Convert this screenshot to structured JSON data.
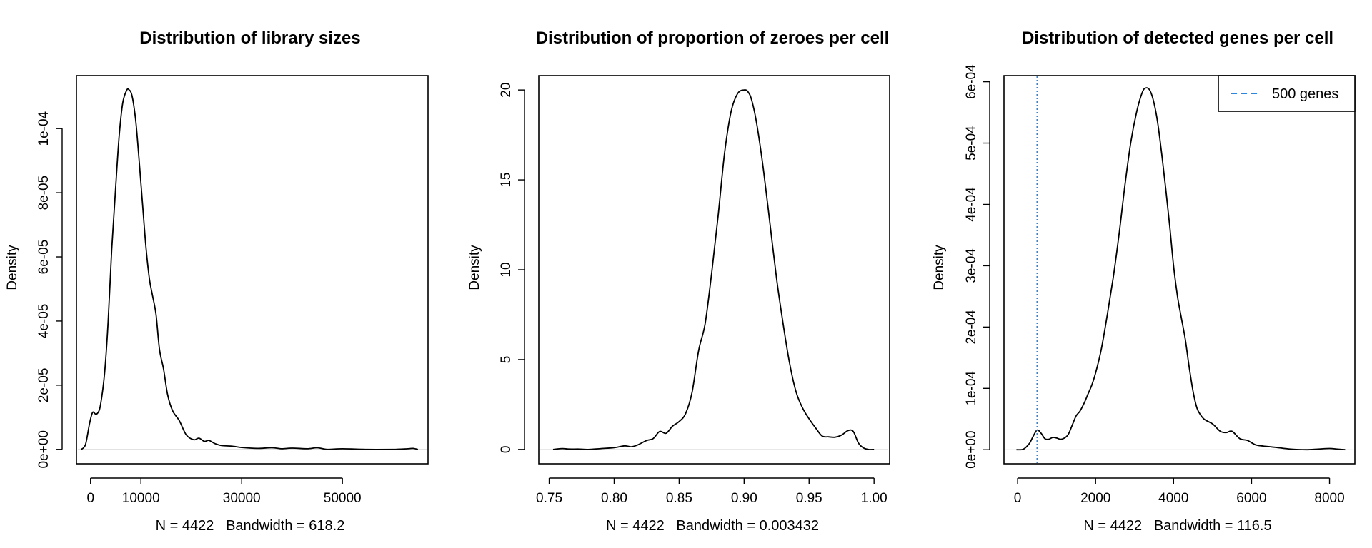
{
  "figure": {
    "background": "#ffffff",
    "curve_color": "#000000",
    "zero_line_color": "#d9d9d9"
  },
  "chart_data": [
    {
      "type": "line",
      "title": "Distribution of library sizes",
      "xlabel": "N = 4422   Bandwidth = 618.2",
      "ylabel": "Density",
      "xlim": [
        -2800,
        67000
      ],
      "ylim": [
        -4.5e-06,
        0.0001165
      ],
      "xticks": [
        0,
        10000,
        30000,
        50000
      ],
      "xtick_labels": [
        "0",
        "10000",
        "30000",
        "50000"
      ],
      "yticks": [
        0,
        2e-05,
        4e-05,
        6e-05,
        8e-05,
        0.0001
      ],
      "ytick_labels": [
        "0e+00",
        "2e-05",
        "4e-05",
        "6e-05",
        "8e-05",
        "1e-04"
      ],
      "series": [
        {
          "name": "density",
          "x": [
            -1850,
            -1000,
            -200,
            400,
            1000,
            1500,
            2000,
            2800,
            3500,
            4200,
            5000,
            5700,
            6400,
            7200,
            7700,
            8100,
            8500,
            9000,
            9600,
            10300,
            11000,
            11700,
            12300,
            13000,
            13700,
            14500,
            15300,
            16300,
            17600,
            19000,
            20500,
            21500,
            22600,
            23500,
            24700,
            26000,
            28000,
            30000,
            33000,
            36000,
            38000,
            40000,
            43000,
            45000,
            47000,
            50000,
            55000,
            60000,
            63000,
            64000,
            65000
          ],
          "values": [
            0,
            1.5e-06,
            8e-06,
            1.15e-05,
            1.1e-05,
            1.15e-05,
            1.4e-05,
            2.4e-05,
            4e-05,
            6.2e-05,
            8.2e-05,
            9.8e-05,
            0.000108,
            0.000112,
            0.000112,
            0.000111,
            0.000108,
            0.000102,
            9.1e-05,
            7.7e-05,
            6.3e-05,
            5.3e-05,
            4.8e-05,
            4.2e-05,
            3.1e-05,
            2.5e-05,
            1.7e-05,
            1.2e-05,
            9e-06,
            4.5e-06,
            3e-06,
            3.5e-06,
            2.5e-06,
            2.8e-06,
            1.8e-06,
            1.2e-06,
            1e-06,
            6e-07,
            3e-07,
            5e-07,
            2e-07,
            4e-07,
            2e-07,
            5e-07,
            0,
            2e-07,
            0,
            0,
            2e-07,
            3e-07,
            0
          ]
        }
      ],
      "zero_line": true
    },
    {
      "type": "line",
      "title": "Distribution of proportion of zeroes per cell",
      "xlabel": "N = 4422   Bandwidth = 0.003432",
      "ylabel": "Density",
      "xlim": [
        0.742,
        1.012
      ],
      "ylim": [
        -0.8,
        20.8
      ],
      "xticks": [
        0.75,
        0.8,
        0.85,
        0.9,
        0.95,
        1.0
      ],
      "xtick_labels": [
        "0.75",
        "0.80",
        "0.85",
        "0.90",
        "0.95",
        "1.00"
      ],
      "yticks": [
        0,
        5,
        10,
        15,
        20
      ],
      "ytick_labels": [
        "0",
        "5",
        "10",
        "15",
        "20"
      ],
      "series": [
        {
          "name": "density",
          "x": [
            0.753,
            0.76,
            0.765,
            0.772,
            0.78,
            0.79,
            0.8,
            0.808,
            0.813,
            0.818,
            0.825,
            0.83,
            0.835,
            0.84,
            0.845,
            0.85,
            0.855,
            0.86,
            0.865,
            0.87,
            0.875,
            0.88,
            0.885,
            0.89,
            0.895,
            0.9,
            0.903,
            0.906,
            0.91,
            0.915,
            0.92,
            0.925,
            0.93,
            0.935,
            0.94,
            0.945,
            0.95,
            0.955,
            0.96,
            0.965,
            0.97,
            0.975,
            0.98,
            0.984,
            0.988,
            0.992,
            0.996,
            1.0
          ],
          "values": [
            0,
            0.05,
            0.02,
            0.02,
            0,
            0.05,
            0.1,
            0.2,
            0.15,
            0.25,
            0.5,
            0.6,
            1.0,
            0.9,
            1.3,
            1.55,
            2.0,
            3.2,
            5.5,
            7.0,
            9.8,
            13.0,
            16.5,
            18.8,
            19.8,
            20.0,
            19.9,
            19.4,
            18.0,
            15.5,
            12.5,
            9.5,
            7.0,
            4.8,
            3.2,
            2.3,
            1.7,
            1.2,
            0.75,
            0.7,
            0.68,
            0.8,
            1.05,
            1.0,
            0.35,
            0.08,
            0,
            0
          ]
        }
      ],
      "zero_line": true
    },
    {
      "type": "line",
      "title": "Distribution of detected genes per cell",
      "xlabel": "N = 4422   Bandwidth = 116.5",
      "ylabel": "Density",
      "xlim": [
        -350,
        8650
      ],
      "ylim": [
        -2.3e-05,
        0.00061
      ],
      "xticks": [
        0,
        2000,
        4000,
        6000,
        8000
      ],
      "xtick_labels": [
        "0",
        "2000",
        "4000",
        "6000",
        "8000"
      ],
      "yticks": [
        0,
        0.0001,
        0.0002,
        0.0003,
        0.0004,
        0.0005,
        0.0006
      ],
      "ytick_labels": [
        "0e+00",
        "1e-04",
        "2e-04",
        "3e-04",
        "4e-04",
        "5e-04",
        "6e-04"
      ],
      "series": [
        {
          "name": "density",
          "x": [
            -30,
            150,
            300,
            400,
            500,
            600,
            700,
            800,
            900,
            1000,
            1100,
            1200,
            1300,
            1400,
            1500,
            1600,
            1700,
            1800,
            1900,
            2000,
            2150,
            2300,
            2450,
            2600,
            2750,
            2900,
            3050,
            3200,
            3300,
            3400,
            3500,
            3600,
            3700,
            3800,
            3900,
            4000,
            4100,
            4200,
            4300,
            4400,
            4500,
            4600,
            4700,
            4800,
            5000,
            5200,
            5350,
            5500,
            5700,
            5900,
            6100,
            6300,
            6600,
            7000,
            7400,
            7700,
            8000,
            8200,
            8400
          ],
          "values": [
            0,
            1e-06,
            1e-05,
            2.2e-05,
            3.2e-05,
            2.7e-05,
            1.8e-05,
            1.7e-05,
            2e-05,
            1.9e-05,
            1.7e-05,
            1.9e-05,
            2.5e-05,
            4e-05,
            5.5e-05,
            6.3e-05,
            7.5e-05,
            9e-05,
            0.000105,
            0.000125,
            0.000165,
            0.00022,
            0.00028,
            0.00035,
            0.00043,
            0.0005,
            0.00055,
            0.000583,
            0.00059,
            0.000585,
            0.000565,
            0.00053,
            0.00048,
            0.000425,
            0.000365,
            0.0003,
            0.00025,
            0.000215,
            0.00018,
            0.000135,
            9.5e-05,
            6.8e-05,
            5.6e-05,
            4.9e-05,
            4.2e-05,
            3e-05,
            2.8e-05,
            3e-05,
            1.8e-05,
            1.5e-05,
            8e-06,
            6e-06,
            4e-06,
            1e-06,
            0,
            1e-06,
            2e-06,
            1e-06,
            0
          ]
        }
      ],
      "zero_line": true,
      "vline": {
        "x": 500,
        "color": "#2e86de"
      },
      "legend": {
        "position": "top-right",
        "label": "500 genes",
        "color": "#2e86de"
      }
    }
  ]
}
